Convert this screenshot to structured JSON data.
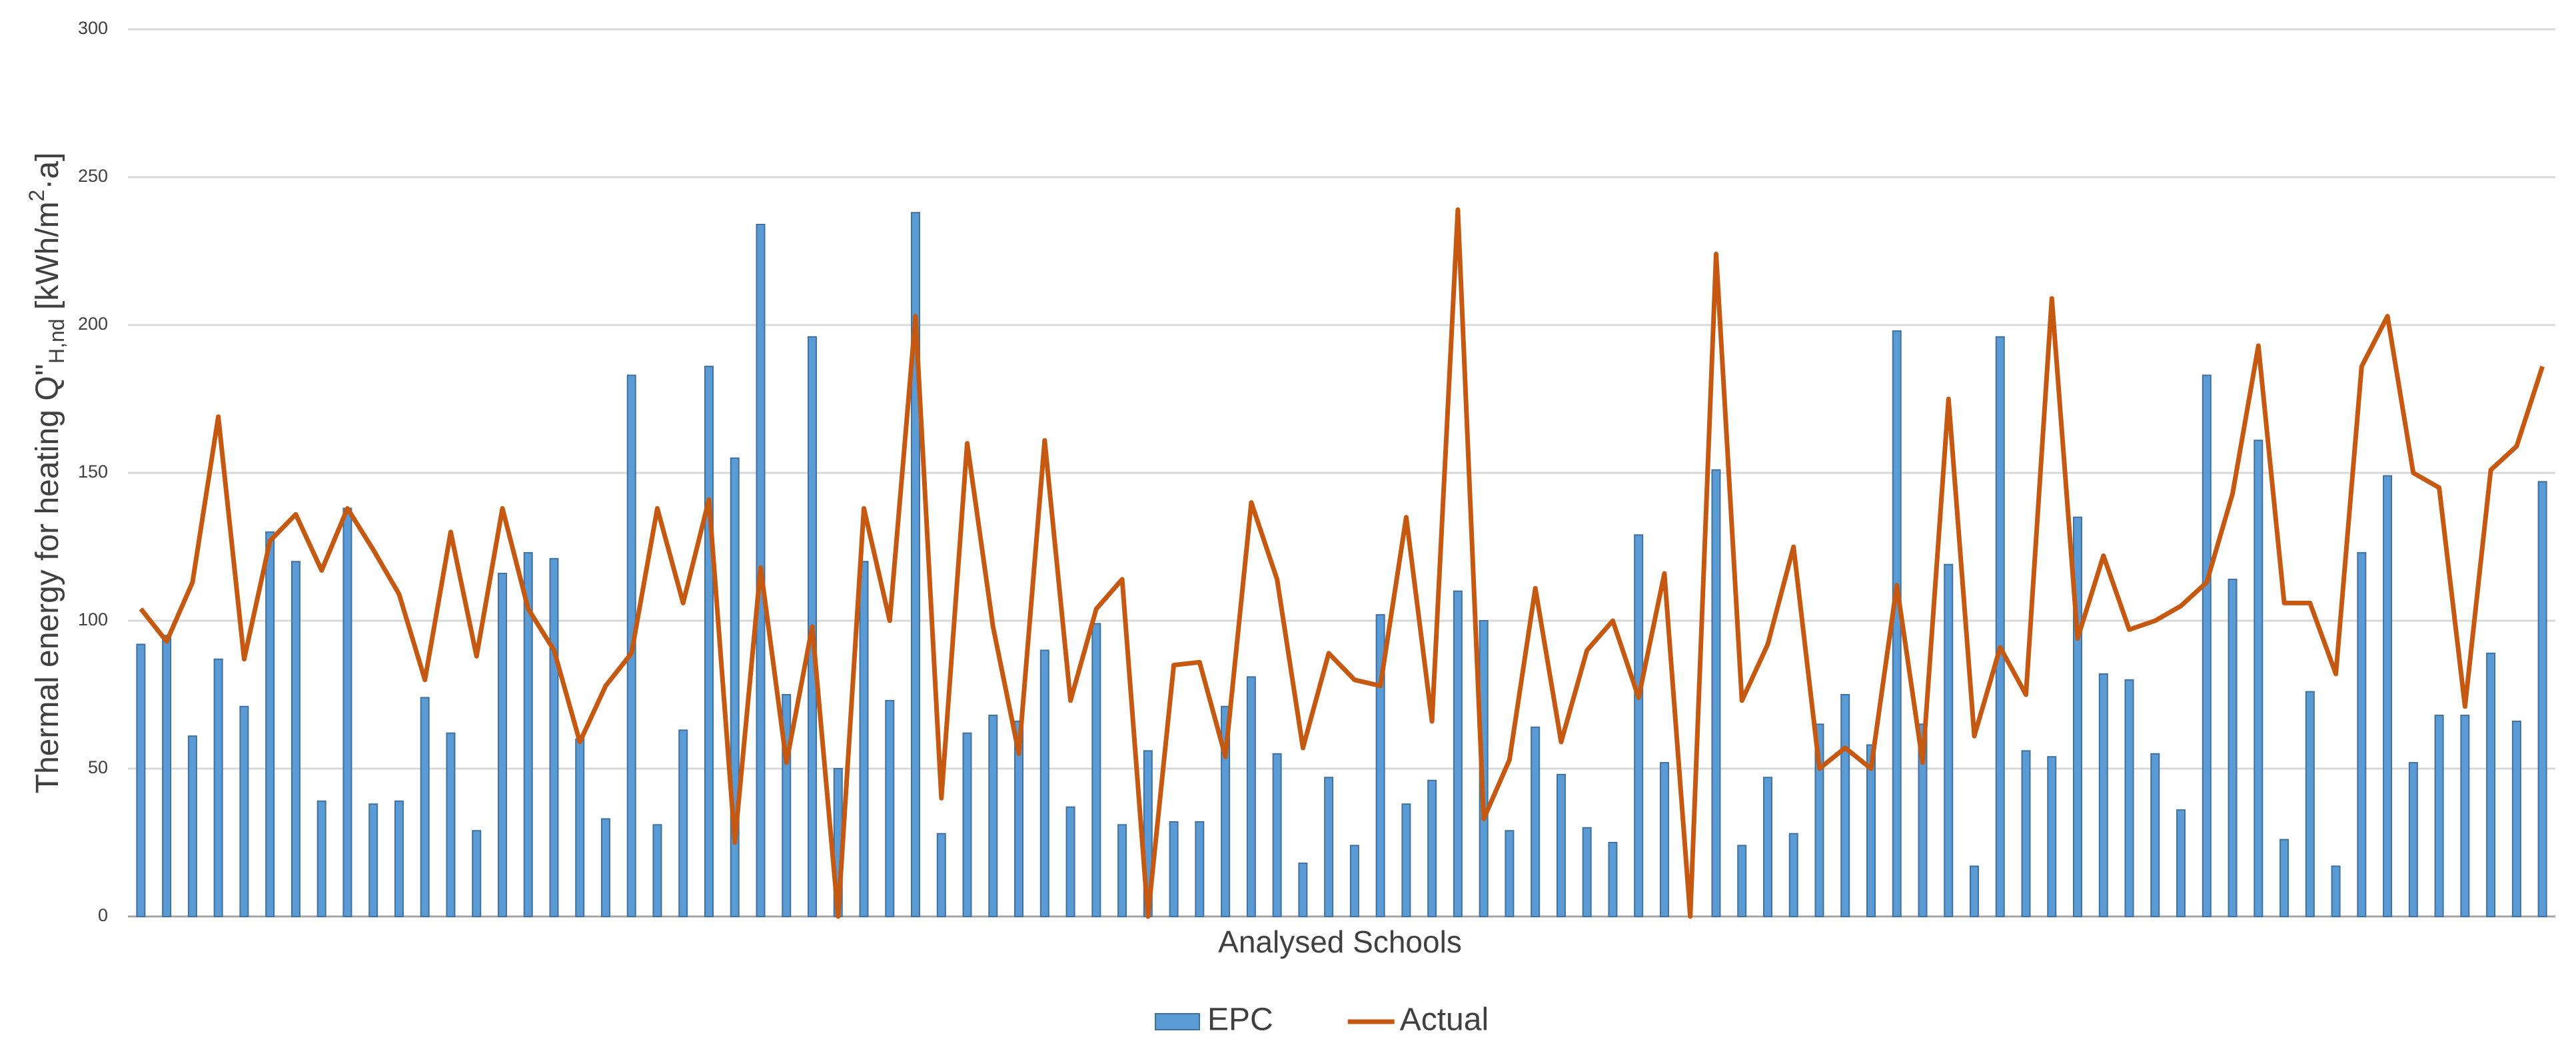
{
  "chart_data": {
    "type": "bar_line",
    "y_label_parts": [
      "Thermal energy for heating Q''",
      "H,nd",
      " [kWh/m",
      "2",
      "·a]"
    ],
    "x_label": "Analysed Schools",
    "categories": [
      null,
      null,
      null,
      null,
      null,
      null,
      null,
      null,
      null,
      null,
      null,
      null,
      null,
      null,
      null,
      null,
      null,
      null,
      null,
      null,
      null,
      null,
      null,
      null,
      null,
      null,
      null,
      null,
      null,
      null,
      null,
      null,
      null,
      null,
      null,
      null,
      null,
      null,
      null,
      null,
      null,
      null,
      null,
      null,
      null,
      null,
      null,
      null,
      null,
      null,
      null,
      null,
      null,
      null,
      null,
      null,
      null,
      null,
      null,
      null,
      null,
      null,
      null,
      null,
      null,
      null,
      null,
      null,
      null,
      null,
      null,
      null,
      null,
      null,
      null,
      null,
      null,
      null,
      null,
      null,
      null,
      null,
      null,
      null,
      null,
      null,
      null,
      null,
      null,
      null,
      null,
      null,
      null,
      null
    ],
    "series": [
      {
        "name": "EPC",
        "type": "bar",
        "color": "#5b9bd5",
        "values": [
          92,
          95,
          61,
          87,
          71,
          130,
          120,
          39,
          138,
          38,
          39,
          74,
          62,
          29,
          116,
          123,
          121,
          60,
          33,
          183,
          31,
          63,
          186,
          155,
          234,
          75,
          196,
          50,
          120,
          73,
          238,
          28,
          62,
          68,
          66,
          90,
          37,
          99,
          31,
          56,
          32,
          32,
          71,
          81,
          55,
          18,
          47,
          24,
          102,
          38,
          46,
          110,
          100,
          29,
          64,
          48,
          30,
          25,
          129,
          52,
          0,
          151,
          24,
          47,
          28,
          65,
          75,
          58,
          198,
          65,
          119,
          17,
          196,
          56,
          54,
          135,
          82,
          80,
          55,
          36,
          183,
          114,
          161,
          26,
          76,
          17,
          123,
          149,
          52,
          68,
          68,
          89,
          66,
          147
        ]
      },
      {
        "name": "Actual",
        "type": "line",
        "color": "#c65911",
        "values": [
          104,
          93,
          113,
          169,
          87,
          127,
          136,
          117,
          138,
          124,
          109,
          80,
          130,
          88,
          138,
          104,
          90,
          59,
          78,
          89,
          138,
          106,
          141,
          25,
          118,
          52,
          98,
          0,
          138,
          100,
          203,
          40,
          160,
          98,
          55,
          161,
          73,
          104,
          114,
          0,
          85,
          86,
          54,
          140,
          114,
          57,
          89,
          80,
          78,
          135,
          66,
          239,
          33,
          53,
          111,
          59,
          90,
          100,
          74,
          116,
          0,
          224,
          73,
          92,
          125,
          50,
          57,
          50,
          112,
          52,
          175,
          61,
          91,
          75,
          209,
          94,
          122,
          97,
          100,
          105,
          113,
          143,
          193,
          106,
          106,
          82,
          186,
          203,
          150,
          145,
          71,
          151,
          159,
          186
        ]
      }
    ],
    "ylim": [
      0,
      300
    ],
    "yticks": [
      0,
      50,
      100,
      150,
      200,
      250,
      300
    ],
    "grid": true,
    "legend": "bottom"
  }
}
